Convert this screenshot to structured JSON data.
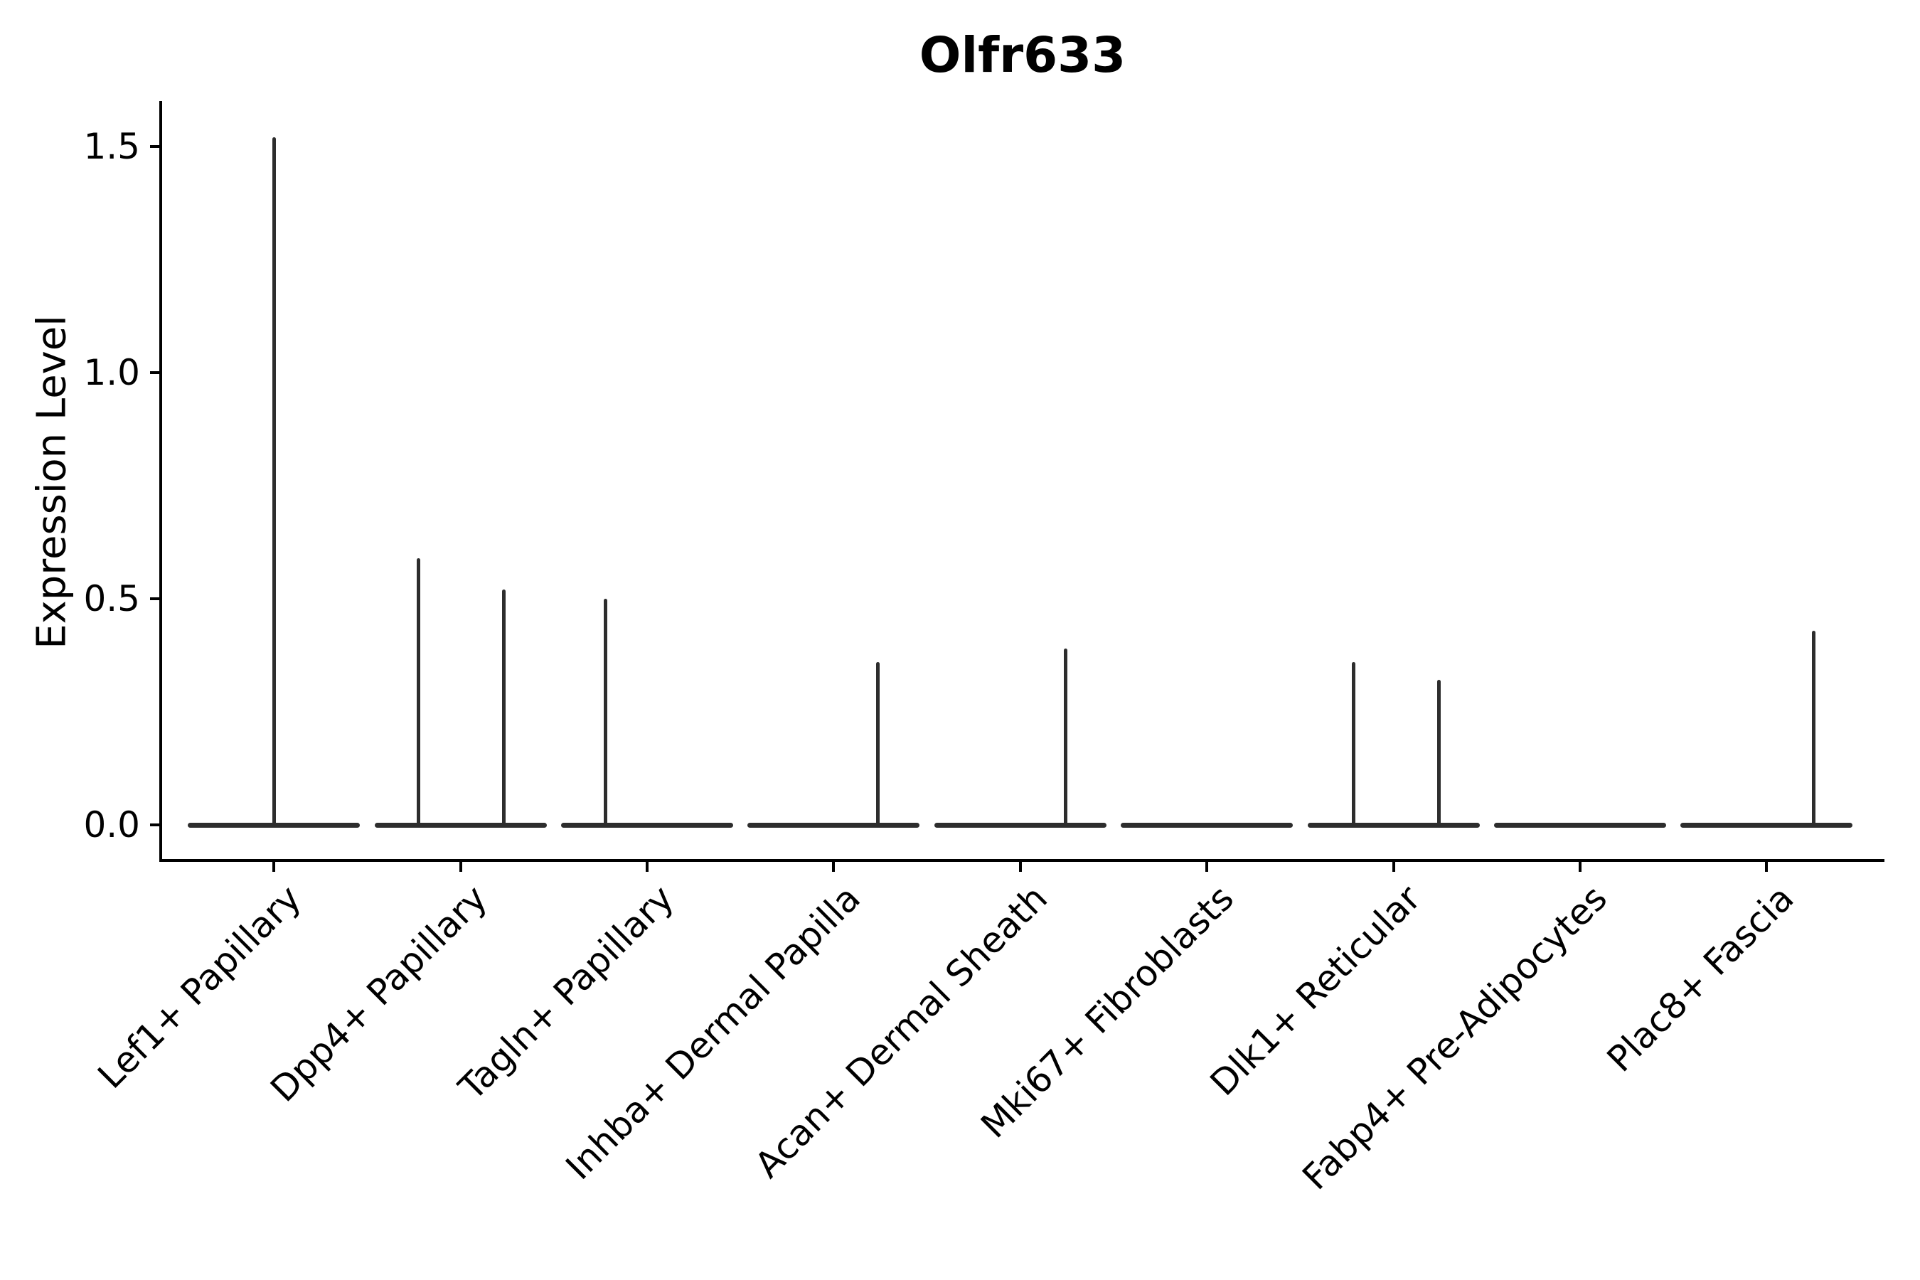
{
  "title": "Olfr633",
  "ylabel": "Expression Level",
  "colors": {
    "violin_line": "#2d2d2d",
    "axis_line": "#000000",
    "text": "#000000",
    "background": "#ffffff"
  },
  "chart_data": {
    "type": "violin",
    "title": "Olfr633",
    "xlabel": "",
    "ylabel": "Expression Level",
    "categories": [
      "Lef1+ Papillary",
      "Dpp4+ Papillary",
      "Tagln+ Papillary",
      "Inhba+ Dermal Papilla",
      "Acan+ Dermal Sheath",
      "Mki67+ Fibroblasts",
      "Dlk1+ Reticular",
      "Fabp4+ Pre-Adipocytes",
      "Plac8+ Fascia"
    ],
    "yticks": [
      0.0,
      0.5,
      1.0,
      1.5
    ],
    "ytick_labels": [
      "0.0",
      "0.5",
      "1.0",
      "1.5"
    ],
    "ylim": [
      -0.08,
      1.6
    ],
    "grid": false,
    "legend_position": "none",
    "baseline_value": 0.0,
    "description": "Violin plot of Olfr633 expression per cell type; each violin collapses to a flat line at 0 with thin vertical spikes marking rare expressing cells.",
    "series": [
      {
        "category": "Lef1+ Papillary",
        "spikes": [
          {
            "offset_frac": 0.0,
            "value": 1.52
          }
        ]
      },
      {
        "category": "Dpp4+ Papillary",
        "spikes": [
          {
            "offset_frac": -0.225,
            "value": 0.59
          },
          {
            "offset_frac": 0.23,
            "value": 0.52
          }
        ]
      },
      {
        "category": "Tagln+ Papillary",
        "spikes": [
          {
            "offset_frac": -0.225,
            "value": 0.5
          }
        ]
      },
      {
        "category": "Inhba+ Dermal Papilla",
        "spikes": [
          {
            "offset_frac": 0.236,
            "value": 0.36
          }
        ]
      },
      {
        "category": "Acan+ Dermal Sheath",
        "spikes": [
          {
            "offset_frac": 0.244,
            "value": 0.39
          }
        ]
      },
      {
        "category": "Mki67+ Fibroblasts",
        "spikes": []
      },
      {
        "category": "Dlk1+ Reticular",
        "spikes": [
          {
            "offset_frac": -0.214,
            "value": 0.36
          },
          {
            "offset_frac": 0.244,
            "value": 0.32
          }
        ]
      },
      {
        "category": "Fabp4+ Pre-Adipocytes",
        "spikes": []
      },
      {
        "category": "Plac8+ Fascia",
        "spikes": [
          {
            "offset_frac": 0.252,
            "value": 0.43
          }
        ]
      }
    ]
  }
}
